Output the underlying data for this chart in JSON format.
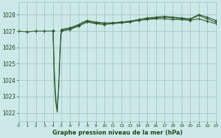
{
  "bg_color": "#cde8e8",
  "grid_color": "#9bbfbf",
  "line_color": "#2d5a2d",
  "marker_color": "#2d5a2d",
  "text_color": "#1a4a1a",
  "xlabel": "Graphe pression niveau de la mer (hPa)",
  "ylim": [
    1021.5,
    1028.75
  ],
  "xlim": [
    0,
    23
  ],
  "yticks": [
    1022,
    1023,
    1024,
    1025,
    1026,
    1027,
    1028
  ],
  "xticks": [
    0,
    1,
    2,
    3,
    4,
    5,
    6,
    7,
    8,
    9,
    10,
    11,
    12,
    13,
    14,
    15,
    16,
    17,
    18,
    19,
    20,
    21,
    22,
    23
  ],
  "line1_x": [
    0,
    1,
    2,
    3,
    4,
    4.08,
    4.15,
    4.3,
    4.5,
    4.7,
    4.85,
    4.92,
    5,
    6,
    7,
    8,
    9,
    10,
    11,
    12,
    13,
    14,
    15,
    16,
    17,
    18,
    19,
    20,
    21,
    22,
    23
  ],
  "line1_y": [
    1027.0,
    1026.95,
    1027.0,
    1027.0,
    1027.0,
    1025.8,
    1024.2,
    1022.8,
    1022.05,
    1024.0,
    1026.0,
    1026.8,
    1027.0,
    1027.1,
    1027.3,
    1027.55,
    1027.45,
    1027.4,
    1027.45,
    1027.5,
    1027.55,
    1027.65,
    1027.7,
    1027.75,
    1027.75,
    1027.7,
    1027.7,
    1027.65,
    1027.75,
    1027.6,
    1027.45
  ],
  "line2_x": [
    5,
    6,
    7,
    7.5,
    8,
    9,
    10,
    11,
    12,
    13,
    14,
    15,
    16,
    17,
    18,
    19,
    20,
    21,
    22,
    23
  ],
  "line2_y": [
    1027.1,
    1027.2,
    1027.4,
    1027.55,
    1027.65,
    1027.55,
    1027.5,
    1027.5,
    1027.55,
    1027.6,
    1027.7,
    1027.8,
    1027.85,
    1027.9,
    1027.85,
    1027.8,
    1027.75,
    1028.0,
    1027.85,
    1027.65
  ],
  "line3_x": [
    4,
    4.08,
    4.15,
    4.3,
    4.5,
    4.7,
    4.85,
    4.92,
    5,
    6,
    7,
    8,
    9,
    10,
    11,
    12,
    13,
    14,
    15,
    16,
    17,
    18,
    19,
    20,
    21,
    22,
    23
  ],
  "line3_y": [
    1027.05,
    1026.2,
    1024.8,
    1023.2,
    1022.1,
    1023.8,
    1025.8,
    1026.6,
    1027.05,
    1027.15,
    1027.35,
    1027.6,
    1027.5,
    1027.45,
    1027.5,
    1027.55,
    1027.6,
    1027.7,
    1027.75,
    1027.8,
    1027.85,
    1027.8,
    1027.75,
    1027.7,
    1027.95,
    1027.75,
    1027.55
  ],
  "markers_x": [
    0,
    1,
    2,
    3,
    4,
    5,
    6,
    7,
    8,
    9,
    10,
    11,
    12,
    13,
    14,
    15,
    16,
    17,
    18,
    19,
    20,
    21,
    22,
    23
  ],
  "markers_y1": [
    1027.0,
    1026.95,
    1027.0,
    1027.0,
    1027.0,
    1027.0,
    1027.1,
    1027.3,
    1027.55,
    1027.45,
    1027.4,
    1027.45,
    1027.5,
    1027.55,
    1027.65,
    1027.7,
    1027.75,
    1027.75,
    1027.7,
    1027.7,
    1027.65,
    1027.75,
    1027.6,
    1027.45
  ],
  "markers_y2": [
    1027.0,
    1026.95,
    1027.0,
    1027.0,
    1027.05,
    1027.05,
    1027.15,
    1027.35,
    1027.6,
    1027.5,
    1027.45,
    1027.5,
    1027.55,
    1027.6,
    1027.7,
    1027.75,
    1027.8,
    1027.85,
    1027.8,
    1027.75,
    1027.7,
    1027.95,
    1027.75,
    1027.55
  ],
  "markers_y3": [
    1027.0,
    1026.95,
    1027.0,
    1027.0,
    1027.0,
    1027.1,
    1027.2,
    1027.4,
    1027.65,
    1027.55,
    1027.5,
    1027.5,
    1027.55,
    1027.6,
    1027.7,
    1027.8,
    1027.85,
    1027.9,
    1027.85,
    1027.8,
    1027.75,
    1028.0,
    1027.85,
    1027.65
  ]
}
